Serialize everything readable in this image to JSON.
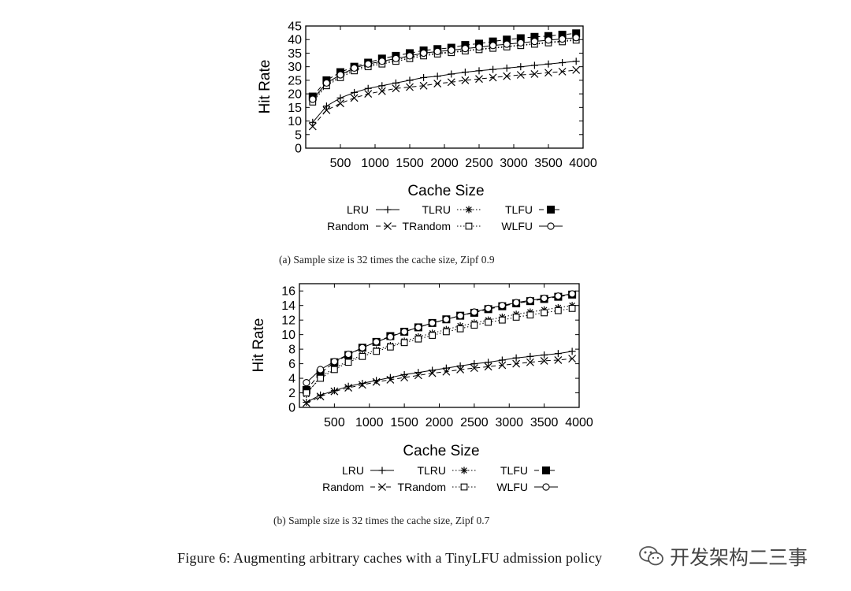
{
  "chart_data": [
    {
      "type": "line",
      "xlabel": "Cache Size",
      "ylabel": "Hit Rate",
      "xlim": [
        0,
        4000
      ],
      "ylim": [
        0,
        45
      ],
      "x_ticks": [
        500,
        1000,
        1500,
        2000,
        2500,
        3000,
        3500,
        4000
      ],
      "y_ticks": [
        0,
        5,
        10,
        15,
        20,
        25,
        30,
        35,
        40,
        45
      ],
      "grid": false,
      "legend_position": "below",
      "x": [
        100,
        300,
        500,
        700,
        900,
        1100,
        1300,
        1500,
        1700,
        1900,
        2100,
        2300,
        2500,
        2700,
        2900,
        3100,
        3300,
        3500,
        3700,
        3900
      ],
      "series": [
        {
          "name": "LRU",
          "marker": "plus",
          "line": "solid",
          "values": [
            9.5,
            15.5,
            18.5,
            20.5,
            22,
            23,
            24,
            25,
            26,
            26.5,
            27.3,
            28,
            28.5,
            29,
            29.5,
            30,
            30.5,
            31,
            31.5,
            32
          ]
        },
        {
          "name": "TLRU",
          "marker": "star",
          "line": "dotted",
          "values": [
            17.5,
            23.5,
            26.5,
            29,
            30.5,
            31.5,
            32.5,
            33.5,
            34.5,
            35,
            35.5,
            36,
            36.5,
            37,
            37.5,
            38,
            38.5,
            39,
            39.5,
            40
          ]
        },
        {
          "name": "TLFU",
          "marker": "filled-square",
          "line": "dashed",
          "values": [
            19,
            25,
            28,
            30,
            31.5,
            33,
            34,
            35,
            36,
            36.5,
            37,
            38,
            38.5,
            39.3,
            40,
            40.5,
            41,
            41.3,
            41.8,
            42.3
          ]
        },
        {
          "name": "Random",
          "marker": "cross",
          "line": "dashed",
          "values": [
            8,
            14,
            16.5,
            18.5,
            20,
            21,
            22,
            22.5,
            23,
            23.8,
            24.3,
            25,
            25.5,
            26,
            26.5,
            27,
            27.3,
            27.8,
            28.2,
            28.8
          ]
        },
        {
          "name": "TRandom",
          "marker": "open-square",
          "line": "dotted",
          "values": [
            17,
            23,
            26,
            28.5,
            30,
            31,
            32,
            33,
            34,
            34.7,
            35.2,
            35.8,
            36.3,
            36.8,
            37.3,
            37.8,
            38.3,
            38.8,
            39.2,
            39.8
          ]
        },
        {
          "name": "WLFU",
          "marker": "open-circle",
          "line": "solid",
          "values": [
            18,
            24,
            27,
            29.5,
            31,
            32,
            33,
            34,
            35,
            35.6,
            36.1,
            36.7,
            37.2,
            37.8,
            38.3,
            38.8,
            39.3,
            39.8,
            40.2,
            40.7
          ]
        }
      ],
      "caption": "(a) Sample size is 32 times the cache size, Zipf 0.9"
    },
    {
      "type": "line",
      "xlabel": "Cache Size",
      "ylabel": "Hit Rate",
      "xlim": [
        0,
        4000
      ],
      "ylim": [
        0,
        17
      ],
      "x_ticks": [
        500,
        1000,
        1500,
        2000,
        2500,
        3000,
        3500,
        4000
      ],
      "y_ticks": [
        0,
        2,
        4,
        6,
        8,
        10,
        12,
        14,
        16
      ],
      "grid": false,
      "legend_position": "below",
      "x": [
        100,
        300,
        500,
        700,
        900,
        1100,
        1300,
        1500,
        1700,
        1900,
        2100,
        2300,
        2500,
        2700,
        2900,
        3100,
        3300,
        3500,
        3700,
        3900
      ],
      "series": [
        {
          "name": "LRU",
          "marker": "plus",
          "line": "solid",
          "values": [
            0.7,
            1.7,
            2.3,
            2.9,
            3.3,
            3.7,
            4.1,
            4.5,
            4.8,
            5.1,
            5.4,
            5.7,
            6,
            6.2,
            6.5,
            6.8,
            7,
            7.2,
            7.4,
            7.7
          ]
        },
        {
          "name": "TLRU",
          "marker": "star",
          "line": "dotted",
          "values": [
            1.8,
            4.2,
            5.4,
            6.4,
            7.2,
            7.9,
            8.5,
            9.1,
            9.7,
            10.2,
            10.7,
            11.2,
            11.6,
            12,
            12.4,
            12.8,
            13.1,
            13.4,
            13.7,
            14
          ]
        },
        {
          "name": "TLFU",
          "marker": "filled-square",
          "line": "dashed",
          "values": [
            2.4,
            4.7,
            6.2,
            7.2,
            8.2,
            9,
            9.8,
            10.4,
            11,
            11.6,
            12.1,
            12.6,
            13,
            13.5,
            13.9,
            14.3,
            14.6,
            14.9,
            15.2,
            15.5
          ]
        },
        {
          "name": "Random",
          "marker": "cross",
          "line": "dashed",
          "values": [
            0.6,
            1.5,
            2.2,
            2.7,
            3.1,
            3.5,
            3.8,
            4.1,
            4.4,
            4.7,
            4.9,
            5.2,
            5.4,
            5.6,
            5.8,
            6,
            6.2,
            6.4,
            6.5,
            6.7
          ]
        },
        {
          "name": "TRandom",
          "marker": "open-square",
          "line": "dotted",
          "values": [
            2,
            4,
            5.2,
            6.2,
            7,
            7.7,
            8.3,
            8.9,
            9.4,
            9.9,
            10.4,
            10.8,
            11.3,
            11.7,
            12,
            12.4,
            12.7,
            13,
            13.3,
            13.6
          ]
        },
        {
          "name": "WLFU",
          "marker": "open-circle",
          "line": "solid",
          "values": [
            3.4,
            5.2,
            6.3,
            7.3,
            8.2,
            9,
            9.7,
            10.4,
            11,
            11.6,
            12.1,
            12.6,
            13.1,
            13.6,
            14,
            14.4,
            14.7,
            15,
            15.3,
            15.6
          ]
        }
      ],
      "caption": "(b) Sample size is 32 times the cache size, Zipf 0.7"
    }
  ],
  "figure_caption": "Figure 6: Augmenting arbitrary caches with a TinyLFU admission policy",
  "watermark": {
    "icon": "wechat-icon",
    "text": "开发架构二三事"
  }
}
